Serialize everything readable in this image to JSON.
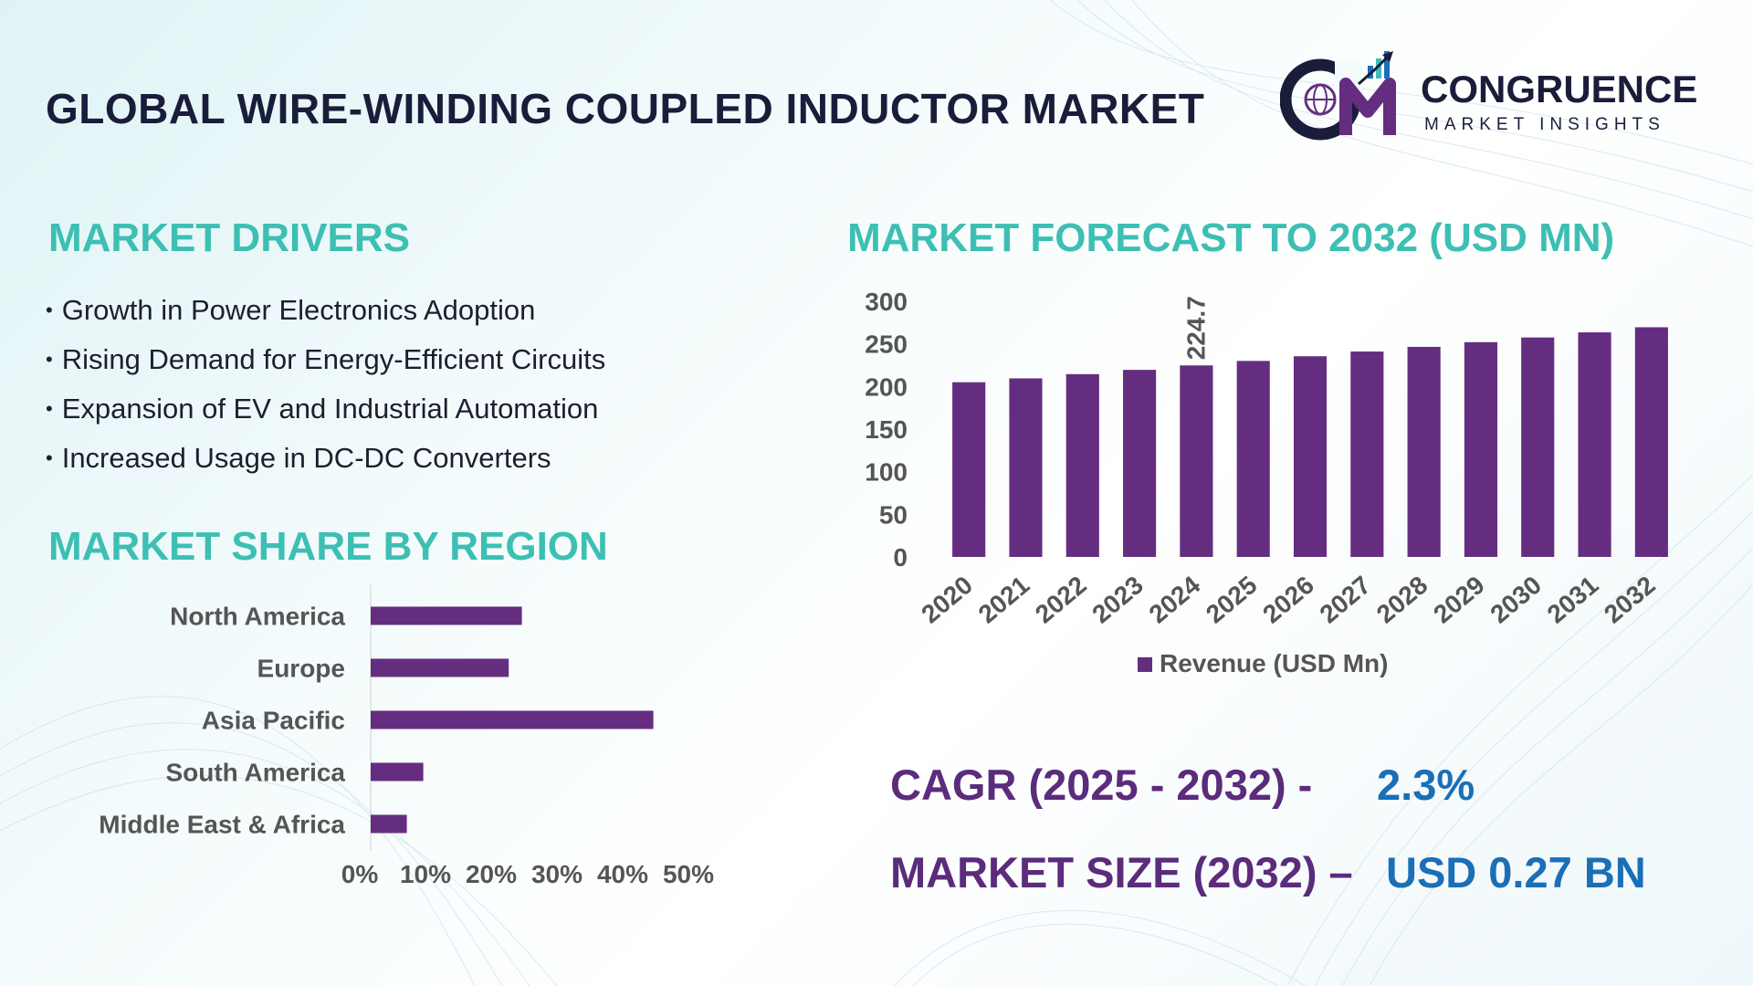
{
  "header": {
    "title": "GLOBAL WIRE-WINDING COUPLED INDUCTOR MARKET",
    "brand_name": "CONGRUENCE",
    "brand_sub": "MARKET INSIGHTS",
    "logo_letters": "CM"
  },
  "drivers": {
    "title": "MARKET DRIVERS",
    "items": [
      "Growth in Power Electronics Adoption",
      "Rising Demand for Energy-Efficient Circuits",
      "Expansion of EV and Industrial Automation",
      "Increased Usage in DC-DC Converters"
    ]
  },
  "region": {
    "title": "MARKET SHARE BY REGION"
  },
  "forecast": {
    "title": "MARKET FORECAST TO 2032 (USD MN)"
  },
  "stats": {
    "cagr_label": "CAGR (2025 - 2032) -",
    "cagr_value": "2.3%",
    "size_label": "MARKET SIZE (2032) –",
    "size_value": "USD 0.27 BN"
  },
  "colors": {
    "bar": "#652d80",
    "section_title": "#3dbfb3",
    "title": "#1a1d3a",
    "stat_label": "#5b2b7c",
    "stat_value": "#1a6fb7"
  },
  "chart_data": [
    {
      "type": "bar",
      "orientation": "horizontal",
      "categories": [
        "North America",
        "Europe",
        "Asia Pacific",
        "South America",
        "Middle East & Africa"
      ],
      "values": [
        23,
        21,
        43,
        8,
        5.5
      ],
      "xlim": [
        0,
        50
      ],
      "x_ticks": [
        "0%",
        "10%",
        "20%",
        "30%",
        "40%",
        "50%"
      ],
      "grid": false
    },
    {
      "type": "bar",
      "categories": [
        "2020",
        "2021",
        "2022",
        "2023",
        "2024",
        "2025",
        "2026",
        "2027",
        "2028",
        "2029",
        "2030",
        "2031",
        "2032"
      ],
      "series": [
        {
          "name": "Revenue (USD Mn)",
          "values": [
            205,
            209.5,
            214.5,
            219.5,
            224.7,
            230,
            235.5,
            241,
            246.5,
            252,
            257.5,
            263.5,
            269.5
          ]
        }
      ],
      "data_labels": {
        "2024": "224.7"
      },
      "ylim": [
        0,
        300
      ],
      "y_ticks": [
        "0",
        "50",
        "100",
        "150",
        "200",
        "250",
        "300"
      ],
      "legend": "bottom",
      "grid": false
    }
  ]
}
